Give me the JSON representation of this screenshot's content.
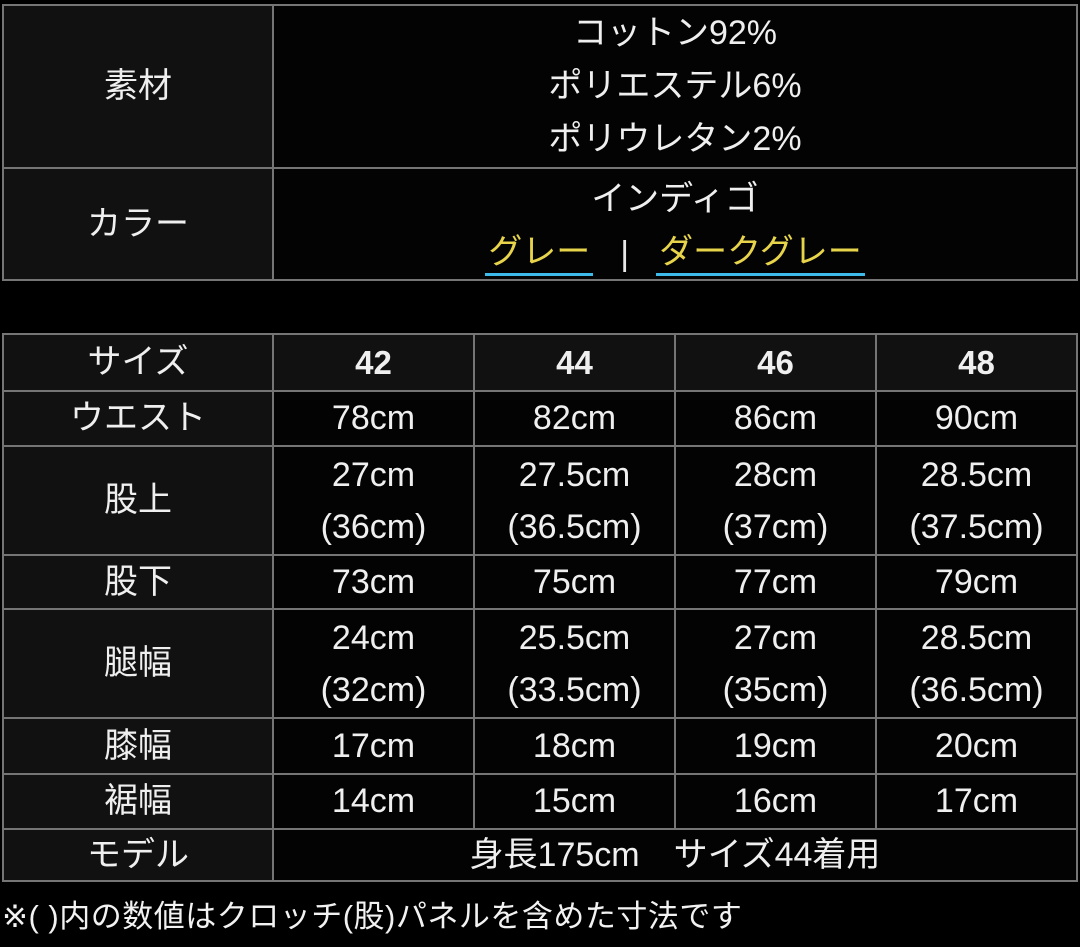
{
  "colors": {
    "page_bg": "#000000",
    "table_border": "#757575",
    "text": "#efefef",
    "link_text": "#e7d44b",
    "link_underline": "#3db9ea",
    "header_cell_bg": "#111111",
    "data_cell_bg": "#030303"
  },
  "info_table": {
    "material": {
      "label": "素材",
      "lines": [
        "コットン92%",
        "ポリエステル6%",
        "ポリウレタン2%"
      ]
    },
    "color": {
      "label": "カラー",
      "current": "インディゴ",
      "separator": "|",
      "links": [
        {
          "label": "グレー"
        },
        {
          "label": "ダークグレー"
        }
      ]
    }
  },
  "size_table": {
    "header_label": "サイズ",
    "sizes": [
      "42",
      "44",
      "46",
      "48"
    ],
    "rows": [
      {
        "label": "ウエスト",
        "values": [
          [
            "78cm"
          ],
          [
            "82cm"
          ],
          [
            "86cm"
          ],
          [
            "90cm"
          ]
        ]
      },
      {
        "label": "股上",
        "values": [
          [
            "27cm",
            "(36cm)"
          ],
          [
            "27.5cm",
            "(36.5cm)"
          ],
          [
            "28cm",
            "(37cm)"
          ],
          [
            "28.5cm",
            "(37.5cm)"
          ]
        ]
      },
      {
        "label": "股下",
        "values": [
          [
            "73cm"
          ],
          [
            "75cm"
          ],
          [
            "77cm"
          ],
          [
            "79cm"
          ]
        ]
      },
      {
        "label": "腿幅",
        "values": [
          [
            "24cm",
            "(32cm)"
          ],
          [
            "25.5cm",
            "(33.5cm)"
          ],
          [
            "27cm",
            "(35cm)"
          ],
          [
            "28.5cm",
            "(36.5cm)"
          ]
        ]
      },
      {
        "label": "膝幅",
        "values": [
          [
            "17cm"
          ],
          [
            "18cm"
          ],
          [
            "19cm"
          ],
          [
            "20cm"
          ]
        ]
      },
      {
        "label": "裾幅",
        "values": [
          [
            "14cm"
          ],
          [
            "15cm"
          ],
          [
            "16cm"
          ],
          [
            "17cm"
          ]
        ]
      }
    ],
    "model_row": {
      "label": "モデル",
      "value": "身長175cm　サイズ44着用"
    }
  },
  "footnote": "※( )内の数値はクロッチ(股)パネルを含めた寸法です"
}
